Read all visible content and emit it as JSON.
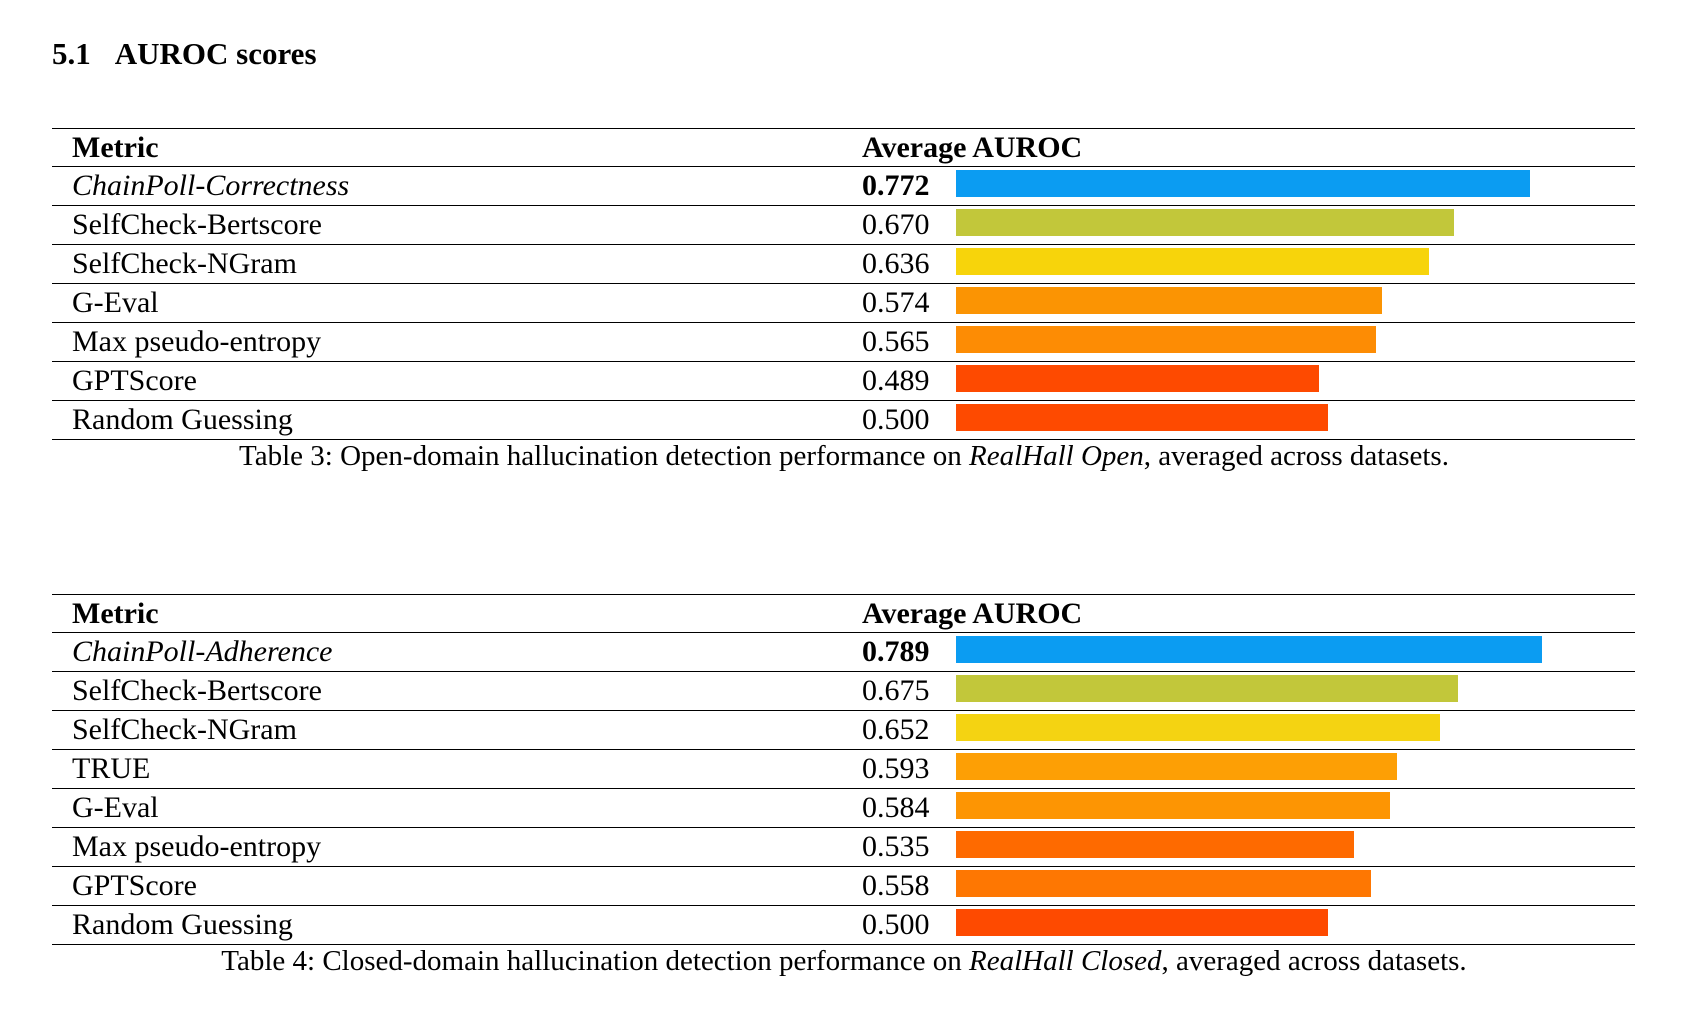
{
  "section": {
    "number": "5.1",
    "title": "AUROC scores"
  },
  "tables": [
    {
      "header": {
        "metric": "Metric",
        "value": "Average AUROC"
      },
      "rows": [
        {
          "metric": "ChainPoll-Correctness",
          "value": "0.772",
          "score": 0.772,
          "italic": true,
          "bold_value": true,
          "color": "#0b9cf2"
        },
        {
          "metric": "SelfCheck-Bertscore",
          "value": "0.670",
          "score": 0.67,
          "color": "#c2c73a"
        },
        {
          "metric": "SelfCheck-NGram",
          "value": "0.636",
          "score": 0.636,
          "color": "#f7d40b"
        },
        {
          "metric": "G-Eval",
          "value": "0.574",
          "score": 0.574,
          "color": "#fb9403"
        },
        {
          "metric": "Max pseudo-entropy",
          "value": "0.565",
          "score": 0.565,
          "color": "#fd8c04"
        },
        {
          "metric": "GPTScore",
          "value": "0.489",
          "score": 0.489,
          "color": "#fe4a00"
        },
        {
          "metric": "Random Guessing",
          "value": "0.500",
          "score": 0.5,
          "color": "#fe4a00"
        }
      ],
      "caption": {
        "prefix": "Table 3:  Open-domain hallucination detection performance on ",
        "emph": "RealHall Open",
        "suffix": ", averaged across datasets."
      }
    },
    {
      "header": {
        "metric": "Metric",
        "value": "Average AUROC"
      },
      "rows": [
        {
          "metric": "ChainPoll-Adherence",
          "value": "0.789",
          "score": 0.789,
          "italic": true,
          "bold_value": true,
          "color": "#0b9cf2"
        },
        {
          "metric": "SelfCheck-Bertscore",
          "value": "0.675",
          "score": 0.675,
          "color": "#c2c73a"
        },
        {
          "metric": "SelfCheck-NGram",
          "value": "0.652",
          "score": 0.652,
          "color": "#f4d312"
        },
        {
          "metric": "TRUE",
          "value": "0.593",
          "score": 0.593,
          "color": "#fd9f05"
        },
        {
          "metric": "G-Eval",
          "value": "0.584",
          "score": 0.584,
          "color": "#fd9503"
        },
        {
          "metric": "Max pseudo-entropy",
          "value": "0.535",
          "score": 0.535,
          "color": "#fe6a00"
        },
        {
          "metric": "GPTScore",
          "value": "0.558",
          "score": 0.558,
          "color": "#fe7702"
        },
        {
          "metric": "Random Guessing",
          "value": "0.500",
          "score": 0.5,
          "color": "#fe4a00"
        }
      ],
      "caption": {
        "prefix": "Table 4:  Closed-domain hallucination detection performance on ",
        "emph": "RealHall Closed",
        "suffix": ", averaged across datasets."
      }
    }
  ]
}
